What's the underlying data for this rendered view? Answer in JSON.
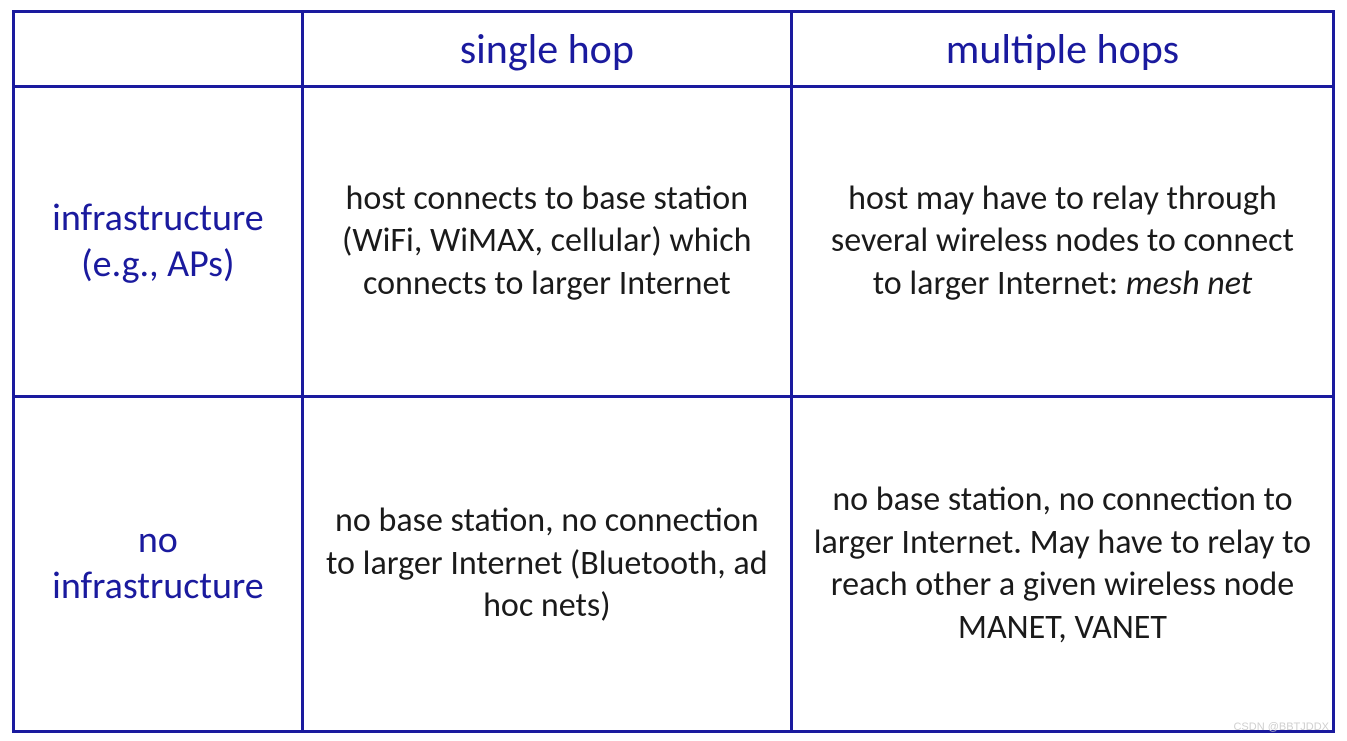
{
  "table": {
    "border_color": "#1a1a9e",
    "header_text_color": "#1a1a9e",
    "body_text_color": "#1a1a1a",
    "background_color": "#ffffff",
    "header_fontsize": 42,
    "rowheader_fontsize": 38,
    "body_fontsize": 34,
    "columns": [
      "",
      "single hop",
      "multiple hops"
    ],
    "rows": [
      {
        "label": "infrastructure (e.g., APs)",
        "cells": [
          "host connects to base station (WiFi, WiMAX, cellular) which connects to larger Internet",
          "host may have to relay through several wireless nodes to connect to larger Internet: mesh net"
        ]
      },
      {
        "label": "no infrastructure",
        "cells": [
          "no base station, no connection to larger Internet (Bluetooth, ad hoc nets)",
          "no base station, no connection to larger Internet. May have to relay to reach other a given wireless node MANET, VANET"
        ]
      }
    ],
    "mesh_net_italic": "mesh net"
  },
  "watermark": "CSDN @BBTJDDX"
}
